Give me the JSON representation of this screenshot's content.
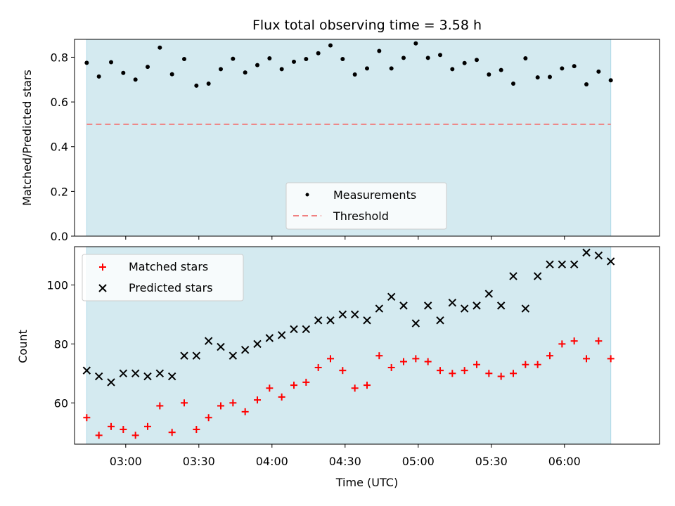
{
  "chart_data": [
    {
      "type": "scatter",
      "title": "Flux total observing time = 3.58 h",
      "xlabel": "",
      "ylabel": "Matched/Predicted stars",
      "ylim": [
        0,
        0.88
      ],
      "yticks": [
        "0.0",
        "0.2",
        "0.4",
        "0.6",
        "0.8"
      ],
      "x_range": [
        "02:39",
        "06:39"
      ],
      "observing_window": [
        "02:44",
        "06:19"
      ],
      "shade_color": "#d4eaf0",
      "legend_position": "bottom-center",
      "series": [
        {
          "name": "Measurements",
          "marker": "dot",
          "color": "#000000",
          "x": [
            "02:44",
            "02:49",
            "02:54",
            "02:59",
            "03:04",
            "03:09",
            "03:14",
            "03:19",
            "03:24",
            "03:29",
            "03:34",
            "03:39",
            "03:44",
            "03:49",
            "03:54",
            "03:59",
            "04:04",
            "04:09",
            "04:14",
            "04:19",
            "04:24",
            "04:29",
            "04:34",
            "04:39",
            "04:44",
            "04:49",
            "04:54",
            "04:59",
            "05:04",
            "05:09",
            "05:14",
            "05:19",
            "05:24",
            "05:29",
            "05:34",
            "05:39",
            "05:44",
            "05:49",
            "05:54",
            "05:59",
            "06:04",
            "06:09",
            "06:14",
            "06:19"
          ],
          "y": [
            0.775,
            0.714,
            0.778,
            0.73,
            0.7,
            0.757,
            0.843,
            0.724,
            0.792,
            0.673,
            0.682,
            0.747,
            0.793,
            0.732,
            0.765,
            0.795,
            0.747,
            0.78,
            0.792,
            0.818,
            0.853,
            0.792,
            0.723,
            0.75,
            0.828,
            0.75,
            0.797,
            0.862,
            0.797,
            0.81,
            0.747,
            0.774,
            0.788,
            0.723,
            0.743,
            0.682,
            0.795,
            0.71,
            0.712,
            0.75,
            0.76,
            0.679,
            0.736,
            0.697
          ]
        },
        {
          "name": "Threshold",
          "marker": "dashed-line",
          "color": "#f08080",
          "value": 0.5
        }
      ]
    },
    {
      "type": "scatter",
      "title": "",
      "xlabel": "Time (UTC)",
      "ylabel": "Count",
      "ylim": [
        46,
        113
      ],
      "yticks": [
        "60",
        "80",
        "100"
      ],
      "xticks": [
        "03:00",
        "03:30",
        "04:00",
        "04:30",
        "05:00",
        "05:30",
        "06:00"
      ],
      "x_range": [
        "02:39",
        "06:39"
      ],
      "observing_window": [
        "02:44",
        "06:19"
      ],
      "shade_color": "#d4eaf0",
      "legend_position": "top-left",
      "series": [
        {
          "name": "Matched stars",
          "marker": "plus",
          "color": "#ff0000",
          "x": [
            "02:44",
            "02:49",
            "02:54",
            "02:59",
            "03:04",
            "03:09",
            "03:14",
            "03:19",
            "03:24",
            "03:29",
            "03:34",
            "03:39",
            "03:44",
            "03:49",
            "03:54",
            "03:59",
            "04:04",
            "04:09",
            "04:14",
            "04:19",
            "04:24",
            "04:29",
            "04:34",
            "04:39",
            "04:44",
            "04:49",
            "04:54",
            "04:59",
            "05:04",
            "05:09",
            "05:14",
            "05:19",
            "05:24",
            "05:29",
            "05:34",
            "05:39",
            "05:44",
            "05:49",
            "05:54",
            "05:59",
            "06:04",
            "06:09",
            "06:14",
            "06:19"
          ],
          "y": [
            55,
            49,
            52,
            51,
            49,
            52,
            59,
            50,
            60,
            51,
            55,
            59,
            60,
            57,
            61,
            65,
            62,
            66,
            67,
            72,
            75,
            71,
            65,
            66,
            76,
            72,
            74,
            75,
            74,
            71,
            70,
            71,
            73,
            70,
            69,
            70,
            73,
            73,
            76,
            80,
            81,
            75,
            81,
            75
          ]
        },
        {
          "name": "Predicted stars",
          "marker": "x",
          "color": "#000000",
          "x": [
            "02:44",
            "02:49",
            "02:54",
            "02:59",
            "03:04",
            "03:09",
            "03:14",
            "03:19",
            "03:24",
            "03:29",
            "03:34",
            "03:39",
            "03:44",
            "03:49",
            "03:54",
            "03:59",
            "04:04",
            "04:09",
            "04:14",
            "04:19",
            "04:24",
            "04:29",
            "04:34",
            "04:39",
            "04:44",
            "04:49",
            "04:54",
            "04:59",
            "05:04",
            "05:09",
            "05:14",
            "05:19",
            "05:24",
            "05:29",
            "05:34",
            "05:39",
            "05:44",
            "05:49",
            "05:54",
            "05:59",
            "06:04",
            "06:09",
            "06:14",
            "06:19"
          ],
          "y": [
            71,
            69,
            67,
            70,
            70,
            69,
            70,
            69,
            76,
            76,
            81,
            79,
            76,
            78,
            80,
            82,
            83,
            85,
            85,
            88,
            88,
            90,
            90,
            88,
            92,
            96,
            93,
            87,
            93,
            88,
            94,
            92,
            93,
            97,
            93,
            103,
            92,
            103,
            107,
            107,
            107,
            111,
            110,
            108
          ]
        }
      ]
    }
  ]
}
